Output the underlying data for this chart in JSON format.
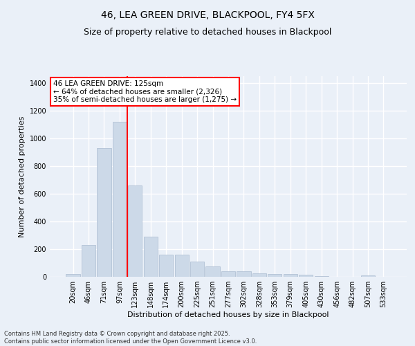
{
  "title": "46, LEA GREEN DRIVE, BLACKPOOL, FY4 5FX",
  "subtitle": "Size of property relative to detached houses in Blackpool",
  "xlabel": "Distribution of detached houses by size in Blackpool",
  "ylabel": "Number of detached properties",
  "categories": [
    "20sqm",
    "46sqm",
    "71sqm",
    "97sqm",
    "123sqm",
    "148sqm",
    "174sqm",
    "200sqm",
    "225sqm",
    "251sqm",
    "277sqm",
    "302sqm",
    "328sqm",
    "353sqm",
    "379sqm",
    "405sqm",
    "430sqm",
    "456sqm",
    "482sqm",
    "507sqm",
    "533sqm"
  ],
  "values": [
    18,
    228,
    930,
    1120,
    660,
    290,
    160,
    160,
    110,
    75,
    42,
    42,
    25,
    20,
    22,
    15,
    5,
    0,
    0,
    8,
    0
  ],
  "bar_color": "#ccd9e8",
  "bar_edge_color": "#aabbd0",
  "vline_index": 3.5,
  "vline_color": "red",
  "annotation_text_line1": "46 LEA GREEN DRIVE: 125sqm",
  "annotation_text_line2": "← 64% of detached houses are smaller (2,326)",
  "annotation_text_line3": "35% of semi-detached houses are larger (1,275) →",
  "annotation_box_color": "red",
  "annotation_fill_color": "white",
  "footer_text": "Contains HM Land Registry data © Crown copyright and database right 2025.\nContains public sector information licensed under the Open Government Licence v3.0.",
  "ylim": [
    0,
    1450
  ],
  "background_color": "#eaf0f8",
  "grid_color": "white",
  "title_fontsize": 10,
  "subtitle_fontsize": 9,
  "axis_label_fontsize": 8,
  "tick_fontsize": 7,
  "annotation_fontsize": 7.5
}
